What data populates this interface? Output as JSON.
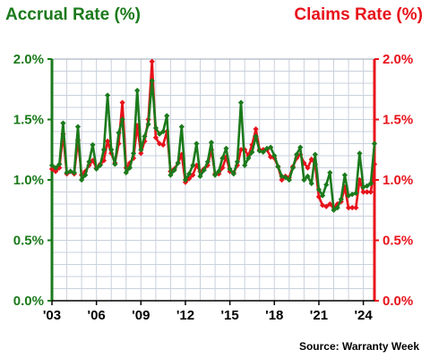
{
  "header": {
    "left_title": "Accrual Rate (%)",
    "right_title": "Claims Rate (%)"
  },
  "source": "Source: Warranty Week",
  "colors": {
    "accrual": "#1b7a1b",
    "claims": "#e8121b",
    "grid": "#c9d1dc"
  },
  "chart_data": {
    "type": "line",
    "title": "",
    "xlabel": "",
    "ylabel_left": "Accrual Rate (%)",
    "ylabel_right": "Claims Rate (%)",
    "ylim": [
      0,
      2.0
    ],
    "yticks": [
      "0.0%",
      "0.5%",
      "1.0%",
      "1.5%",
      "2.0%"
    ],
    "x_tick_labels": [
      "'03",
      "'06",
      "'09",
      "'12",
      "'15",
      "'18",
      "'21",
      "'24"
    ],
    "x_range": [
      2003.0,
      2024.75
    ],
    "grid": true,
    "series": [
      {
        "name": "Accrual Rate (%)",
        "x": [
          2003.0,
          2003.25,
          2003.5,
          2003.75,
          2004.0,
          2004.25,
          2004.5,
          2004.75,
          2005.0,
          2005.25,
          2005.5,
          2005.75,
          2006.0,
          2006.25,
          2006.5,
          2006.75,
          2007.0,
          2007.25,
          2007.5,
          2007.75,
          2008.0,
          2008.25,
          2008.5,
          2008.75,
          2009.0,
          2009.25,
          2009.5,
          2009.75,
          2010.0,
          2010.25,
          2010.5,
          2010.75,
          2011.0,
          2011.25,
          2011.5,
          2011.75,
          2012.0,
          2012.25,
          2012.5,
          2012.75,
          2013.0,
          2013.25,
          2013.5,
          2013.75,
          2014.0,
          2014.25,
          2014.5,
          2014.75,
          2015.0,
          2015.25,
          2015.5,
          2015.75,
          2016.0,
          2016.25,
          2016.5,
          2016.75,
          2017.0,
          2017.25,
          2017.5,
          2017.75,
          2018.0,
          2018.25,
          2018.5,
          2018.75,
          2019.0,
          2019.25,
          2019.5,
          2019.75,
          2020.0,
          2020.25,
          2020.5,
          2020.75,
          2021.0,
          2021.25,
          2021.5,
          2021.75,
          2022.0,
          2022.25,
          2022.5,
          2022.75,
          2023.0,
          2023.25,
          2023.5,
          2023.75,
          2024.0,
          2024.25,
          2024.5,
          2024.75
        ],
        "values": [
          1.12,
          1.1,
          1.13,
          1.47,
          1.06,
          1.07,
          1.06,
          1.44,
          1.0,
          1.04,
          1.15,
          1.29,
          1.09,
          1.12,
          1.25,
          1.7,
          1.25,
          1.13,
          1.39,
          1.5,
          1.06,
          1.1,
          1.22,
          1.74,
          1.25,
          1.36,
          1.46,
          1.82,
          1.43,
          1.38,
          1.4,
          1.53,
          1.04,
          1.08,
          1.14,
          1.44,
          1.0,
          1.05,
          1.12,
          1.3,
          1.03,
          1.08,
          1.15,
          1.31,
          1.04,
          1.07,
          1.18,
          1.26,
          1.09,
          1.05,
          1.15,
          1.64,
          1.12,
          1.18,
          1.23,
          1.36,
          1.24,
          1.23,
          1.26,
          1.27,
          1.2,
          1.11,
          1.03,
          1.02,
          1.0,
          1.1,
          1.21,
          1.27,
          1.0,
          1.03,
          0.97,
          1.21,
          0.92,
          0.87,
          0.96,
          1.06,
          0.75,
          0.77,
          0.84,
          1.04,
          0.87,
          0.88,
          0.89,
          1.22,
          0.94,
          0.95,
          0.97,
          1.3
        ]
      },
      {
        "name": "Claims Rate (%)",
        "x": [
          2003.0,
          2003.25,
          2003.5,
          2003.75,
          2004.0,
          2004.25,
          2004.5,
          2004.75,
          2005.0,
          2005.25,
          2005.5,
          2005.75,
          2006.0,
          2006.25,
          2006.5,
          2006.75,
          2007.0,
          2007.25,
          2007.5,
          2007.75,
          2008.0,
          2008.25,
          2008.5,
          2008.75,
          2009.0,
          2009.25,
          2009.5,
          2009.75,
          2010.0,
          2010.25,
          2010.5,
          2010.75,
          2011.0,
          2011.25,
          2011.5,
          2011.75,
          2012.0,
          2012.25,
          2012.5,
          2012.75,
          2013.0,
          2013.25,
          2013.5,
          2013.75,
          2014.0,
          2014.25,
          2014.5,
          2014.75,
          2015.0,
          2015.25,
          2015.5,
          2015.75,
          2016.0,
          2016.25,
          2016.5,
          2016.75,
          2017.0,
          2017.25,
          2017.5,
          2017.75,
          2018.0,
          2018.25,
          2018.5,
          2018.75,
          2019.0,
          2019.25,
          2019.5,
          2019.75,
          2020.0,
          2020.25,
          2020.5,
          2020.75,
          2021.0,
          2021.25,
          2021.5,
          2021.75,
          2022.0,
          2022.25,
          2022.5,
          2022.75,
          2023.0,
          2023.25,
          2023.5,
          2023.75,
          2024.0,
          2024.25,
          2024.5,
          2024.75
        ],
        "values": [
          1.09,
          1.07,
          1.1,
          1.38,
          1.05,
          1.07,
          1.05,
          1.33,
          1.04,
          1.07,
          1.12,
          1.16,
          1.1,
          1.13,
          1.16,
          1.32,
          1.22,
          1.14,
          1.3,
          1.64,
          1.1,
          1.14,
          1.18,
          1.45,
          1.22,
          1.32,
          1.5,
          1.98,
          1.35,
          1.3,
          1.29,
          1.4,
          1.07,
          1.09,
          1.14,
          1.21,
          0.98,
          1.01,
          1.04,
          1.12,
          1.07,
          1.09,
          1.12,
          1.25,
          1.05,
          1.05,
          1.1,
          1.19,
          1.07,
          1.06,
          1.12,
          1.25,
          1.25,
          1.2,
          1.29,
          1.42,
          1.25,
          1.25,
          1.25,
          1.19,
          1.18,
          1.11,
          1.0,
          1.03,
          1.02,
          1.11,
          1.18,
          1.21,
          1.14,
          1.1,
          1.17,
          1.13,
          0.86,
          0.79,
          0.78,
          0.8,
          0.77,
          0.8,
          0.82,
          0.94,
          0.77,
          0.77,
          0.77,
          1.0,
          0.9,
          0.9,
          0.9,
          1.13
        ]
      }
    ]
  }
}
